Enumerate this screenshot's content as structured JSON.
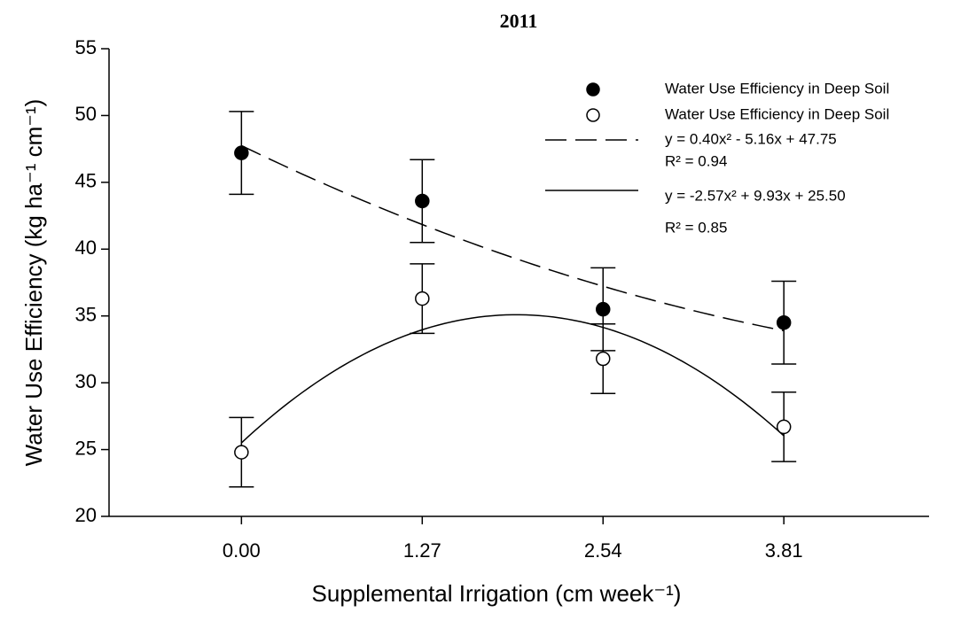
{
  "chart_data": {
    "type": "scatter",
    "title": "2011",
    "x_label": "Supplemental Irrigation (cm week⁻¹)",
    "y_label": "Water Use Efficiency (kg ha⁻¹ cm⁻¹)",
    "x": [
      0,
      1.27,
      2.54,
      3.81
    ],
    "xlim": [
      -0.93,
      4.83
    ],
    "xticks": [
      {
        "value": 0,
        "label": "0.00"
      },
      1.27,
      2.54,
      3.81
    ],
    "ylim": [
      20,
      55
    ],
    "yticks": [
      20,
      25,
      30,
      35,
      40,
      45,
      50,
      55
    ],
    "legend": "top-right",
    "series": [
      {
        "name": "Water Use Efficiency in Deep Soil",
        "color": "#000000",
        "filled": true,
        "values": [
          47.2,
          43.6,
          35.5,
          34.5
        ],
        "errors": [
          3.1,
          3.1,
          3.1,
          3.1
        ],
        "fit": {
          "coefficients": [
            0.4,
            -5.16,
            47.75
          ],
          "dashed": true,
          "label": "y = 0.40x² - 5.16x + 47.75",
          "r2_label": "R² = 0.94"
        }
      },
      {
        "name": "Water Use Efficiency in Deep Soil",
        "color": "#000000",
        "filled": false,
        "values": [
          24.8,
          36.3,
          31.8,
          26.7
        ],
        "errors": [
          2.6,
          2.6,
          2.6,
          2.6
        ],
        "fit": {
          "coefficients": [
            -2.57,
            9.93,
            25.5
          ],
          "dashed": false,
          "label": "y = -2.57x² + 9.93x + 25.50",
          "r2_label": "R² = 0.85"
        }
      }
    ]
  }
}
